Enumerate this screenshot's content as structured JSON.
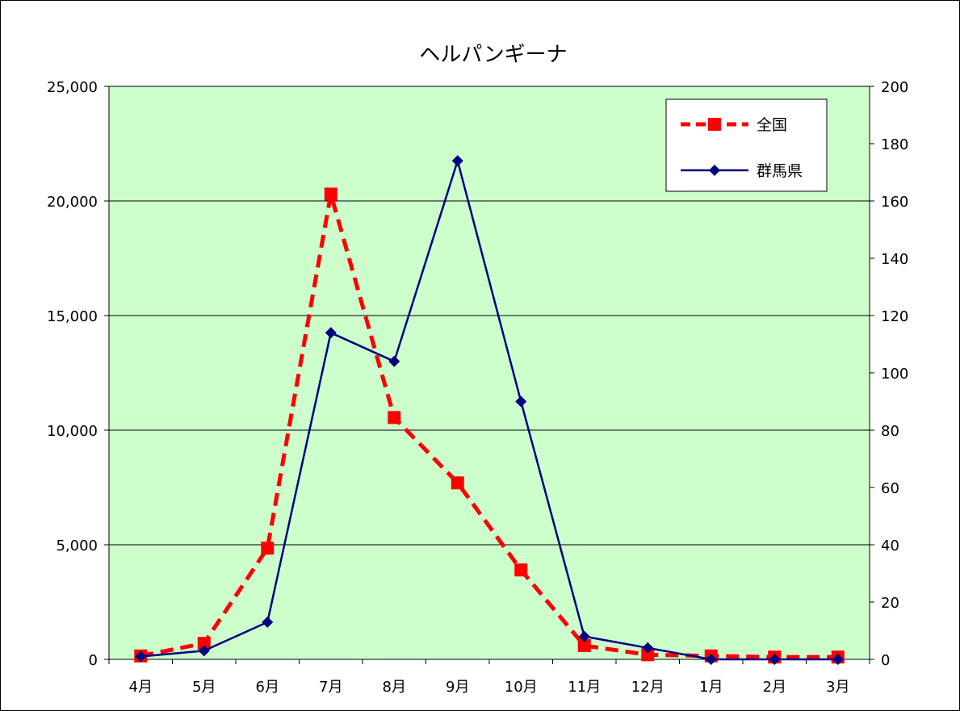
{
  "chart_data": {
    "type": "line",
    "title": "ヘルパンギーナ",
    "categories": [
      "4月",
      "5月",
      "6月",
      "7月",
      "8月",
      "9月",
      "10月",
      "11月",
      "12月",
      "1月",
      "2月",
      "3月"
    ],
    "y_left": {
      "range": [
        0,
        25000
      ],
      "ticks": [
        0,
        5000,
        10000,
        15000,
        20000,
        25000
      ],
      "tick_labels": [
        "0",
        "5,000",
        "10,000",
        "15,000",
        "20,000",
        "25,000"
      ]
    },
    "y_right": {
      "range": [
        0,
        200
      ],
      "ticks": [
        0,
        20,
        40,
        60,
        80,
        100,
        120,
        140,
        160,
        180,
        200
      ],
      "tick_labels": [
        "0",
        "20",
        "40",
        "60",
        "80",
        "100",
        "120",
        "140",
        "160",
        "180",
        "200"
      ]
    },
    "series": [
      {
        "name": "全国",
        "axis": "left",
        "color": "#ff0000",
        "line_style": "dashed",
        "marker": "square",
        "values": [
          150,
          700,
          4850,
          20300,
          10550,
          7700,
          3900,
          600,
          200,
          150,
          100,
          100
        ]
      },
      {
        "name": "群馬県",
        "axis": "right",
        "color": "#000080",
        "line_style": "solid",
        "marker": "diamond",
        "values": [
          1,
          3,
          13,
          114,
          104,
          174,
          90,
          8,
          4,
          0,
          0,
          0
        ]
      }
    ],
    "grid": "horizontal",
    "plot_background": "#ccffcc",
    "legend_position": "top-right"
  }
}
